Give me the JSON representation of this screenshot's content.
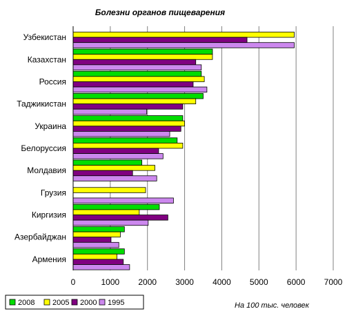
{
  "chart_data": {
    "type": "bar",
    "orientation": "horizontal",
    "title": "Болезни органов пищеварения",
    "note": "На 100 тыс. человек",
    "categories": [
      "Узбекистан",
      "Казахстан",
      "Россия",
      "Таджикистан",
      "Украина",
      "Белоруссия",
      "Молдавия",
      "Грузия",
      "Киргизия",
      "Азербайджан",
      "Армения"
    ],
    "series": [
      {
        "name": "2008",
        "color": "#00dd00",
        "values": [
          null,
          3750,
          3450,
          3500,
          2950,
          2800,
          1850,
          null,
          2320,
          1380,
          1380
        ]
      },
      {
        "name": "2005",
        "color": "#ffff00",
        "values": [
          5950,
          3750,
          3530,
          3300,
          3000,
          2950,
          2200,
          1950,
          1780,
          1270,
          1180
        ]
      },
      {
        "name": "2000",
        "color": "#800080",
        "values": [
          4680,
          3300,
          3230,
          2950,
          2900,
          2300,
          1600,
          null,
          2550,
          1020,
          1350
        ]
      },
      {
        "name": "1995",
        "color": "#cc88ee",
        "values": [
          5950,
          3450,
          3600,
          1980,
          2600,
          2420,
          2250,
          2700,
          2020,
          1230,
          1520
        ]
      }
    ],
    "xlim": [
      0,
      7000
    ],
    "xticks": [
      "0",
      "1000",
      "2000",
      "3000",
      "4000",
      "5000",
      "6000",
      "7000"
    ],
    "grid": true,
    "legend_position": "bottom-left"
  }
}
